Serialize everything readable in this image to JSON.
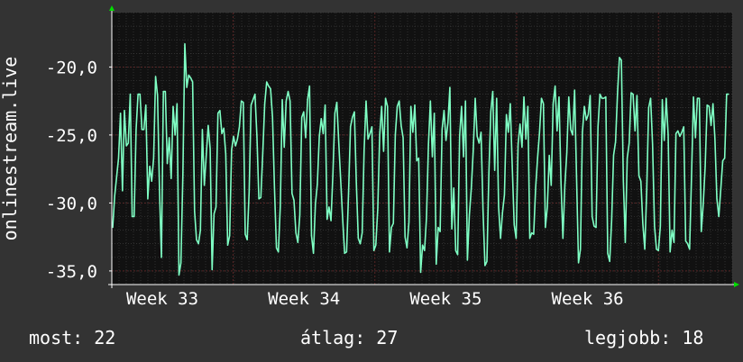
{
  "chart_data": {
    "type": "line",
    "ylabel": "onlinestream.live",
    "ylim": [
      -36,
      -16
    ],
    "y_ticks": [
      "-20,0",
      "-25,0",
      "-30,0",
      "-35,0"
    ],
    "y_tick_values": [
      -20,
      -25,
      -30,
      -35
    ],
    "x_ticks": [
      "Week 33",
      "Week 34",
      "Week 35",
      "Week 36"
    ],
    "grid": true,
    "colors": {
      "background": "#333333",
      "plot_background": "#111111",
      "grid_major": "#6a2a2a",
      "grid_minor": "#444444",
      "line": "#7fffc4",
      "axis": "#ffffff",
      "arrow": "#00dd00"
    },
    "series": [
      {
        "values": [
          -31.8,
          -29.5,
          -28.1,
          -26.7,
          -23.4,
          -29.1,
          -23.2,
          -25.8,
          -25.6,
          -22.0,
          -31.0,
          -31.0,
          -24.6,
          -22.0,
          -22.0,
          -24.6,
          -24.6,
          -22.8,
          -29.7,
          -27.3,
          -28.4,
          -26.7,
          -20.7,
          -22.1,
          -29.0,
          -34.0,
          -21.8,
          -21.8,
          -27.1,
          -25.2,
          -28.2,
          -22.9,
          -25.0,
          -22.7,
          -35.3,
          -34.4,
          -27.9,
          -18.3,
          -21.5,
          -20.6,
          -20.8,
          -21.1,
          -30.6,
          -32.7,
          -33.0,
          -32.0,
          -24.6,
          -28.7,
          -26.5,
          -24.3,
          -26.0,
          -34.9,
          -30.8,
          -30.3,
          -23.4,
          -23.2,
          -24.9,
          -24.5,
          -26.4,
          -33.1,
          -32.4,
          -26.1,
          -25.1,
          -25.8,
          -25.3,
          -24.4,
          -22.5,
          -22.6,
          -32.3,
          -32.7,
          -29.2,
          -22.8,
          -22.4,
          -22.0,
          -25.1,
          -29.7,
          -29.6,
          -26.3,
          -22.7,
          -21.1,
          -21.4,
          -21.6,
          -23.7,
          -28.9,
          -33.3,
          -33.6,
          -30.2,
          -22.4,
          -25.9,
          -22.5,
          -21.8,
          -22.5,
          -29.3,
          -29.8,
          -32.2,
          -32.9,
          -30.9,
          -23.7,
          -23.3,
          -25.2,
          -22.4,
          -21.4,
          -32.4,
          -33.7,
          -30.1,
          -28.6,
          -25.1,
          -23.8,
          -24.9,
          -22.8,
          -31.2,
          -30.3,
          -31.3,
          -27.8,
          -23.4,
          -22.6,
          -25.6,
          -28.4,
          -31.2,
          -33.7,
          -33.6,
          -29.3,
          -24.4,
          -23.7,
          -23.3,
          -28.5,
          -32.6,
          -33.0,
          -32.2,
          -26.1,
          -22.5,
          -25.3,
          -24.9,
          -24.4,
          -33.5,
          -33.1,
          -30.4,
          -25.0,
          -22.9,
          -26.2,
          -22.3,
          -22.9,
          -33.6,
          -31.8,
          -31.5,
          -25.0,
          -22.9,
          -22.5,
          -24.3,
          -25.2,
          -32.5,
          -33.3,
          -31.4,
          -22.9,
          -24.8,
          -22.8,
          -26.9,
          -26.7,
          -35.1,
          -33.1,
          -33.5,
          -31.1,
          -25.7,
          -22.5,
          -26.6,
          -23.4,
          -34.5,
          -31.8,
          -32.1,
          -24.6,
          -23.2,
          -25.4,
          -24.1,
          -21.5,
          -31.9,
          -28.9,
          -33.5,
          -33.8,
          -25.1,
          -22.9,
          -26.6,
          -22.5,
          -34.2,
          -30.9,
          -28.9,
          -26.1,
          -22.3,
          -25.1,
          -25.6,
          -24.8,
          -30.5,
          -34.6,
          -34.3,
          -27.9,
          -23.3,
          -21.8,
          -27.6,
          -22.3,
          -30.3,
          -32.6,
          -30.7,
          -29.4,
          -23.5,
          -24.8,
          -22.7,
          -27.3,
          -31.6,
          -32.6,
          -25.7,
          -24.2,
          -25.9,
          -22.2,
          -25.3,
          -22.9,
          -32.6,
          -32.2,
          -32.3,
          -28.9,
          -26.7,
          -24.8,
          -22.3,
          -22.7,
          -31.8,
          -30.3,
          -26.5,
          -28.7,
          -22.7,
          -21.4,
          -24.7,
          -22.2,
          -28.4,
          -32.6,
          -28.7,
          -26.3,
          -22.2,
          -24.6,
          -25.0,
          -21.7,
          -28.1,
          -34.4,
          -33.4,
          -24.8,
          -22.9,
          -23.9,
          -23.5,
          -22.1,
          -31.0,
          -31.7,
          -31.8,
          -24.4,
          -22.0,
          -22.3,
          -22.3,
          -22.2,
          -33.7,
          -34.3,
          -31.3,
          -26.5,
          -25.5,
          -22.0,
          -19.3,
          -19.5,
          -28.3,
          -32.9,
          -26.7,
          -25.6,
          -21.9,
          -22.0,
          -24.7,
          -22.1,
          -28.0,
          -28.4,
          -31.5,
          -33.4,
          -29.1,
          -23.0,
          -22.3,
          -25.7,
          -31.7,
          -33.4,
          -33.5,
          -31.7,
          -22.4,
          -25.4,
          -22.3,
          -25.0,
          -33.6,
          -32.0,
          -32.9,
          -24.9,
          -24.7,
          -25.1,
          -24.8,
          -24.4,
          -32.8,
          -33.0,
          -33.4,
          -28.0,
          -22.2,
          -25.2,
          -22.3,
          -22.3,
          -32.1,
          -30.1,
          -27.3,
          -22.8,
          -22.9,
          -24.3,
          -22.7,
          -25.3,
          -29.7,
          -31.0,
          -29.0,
          -26.9,
          -26.7,
          -22.0,
          -22.0
        ]
      }
    ]
  },
  "footer": {
    "current": "most: 22",
    "average": "átlag: 27",
    "best": "legjobb: 18"
  }
}
